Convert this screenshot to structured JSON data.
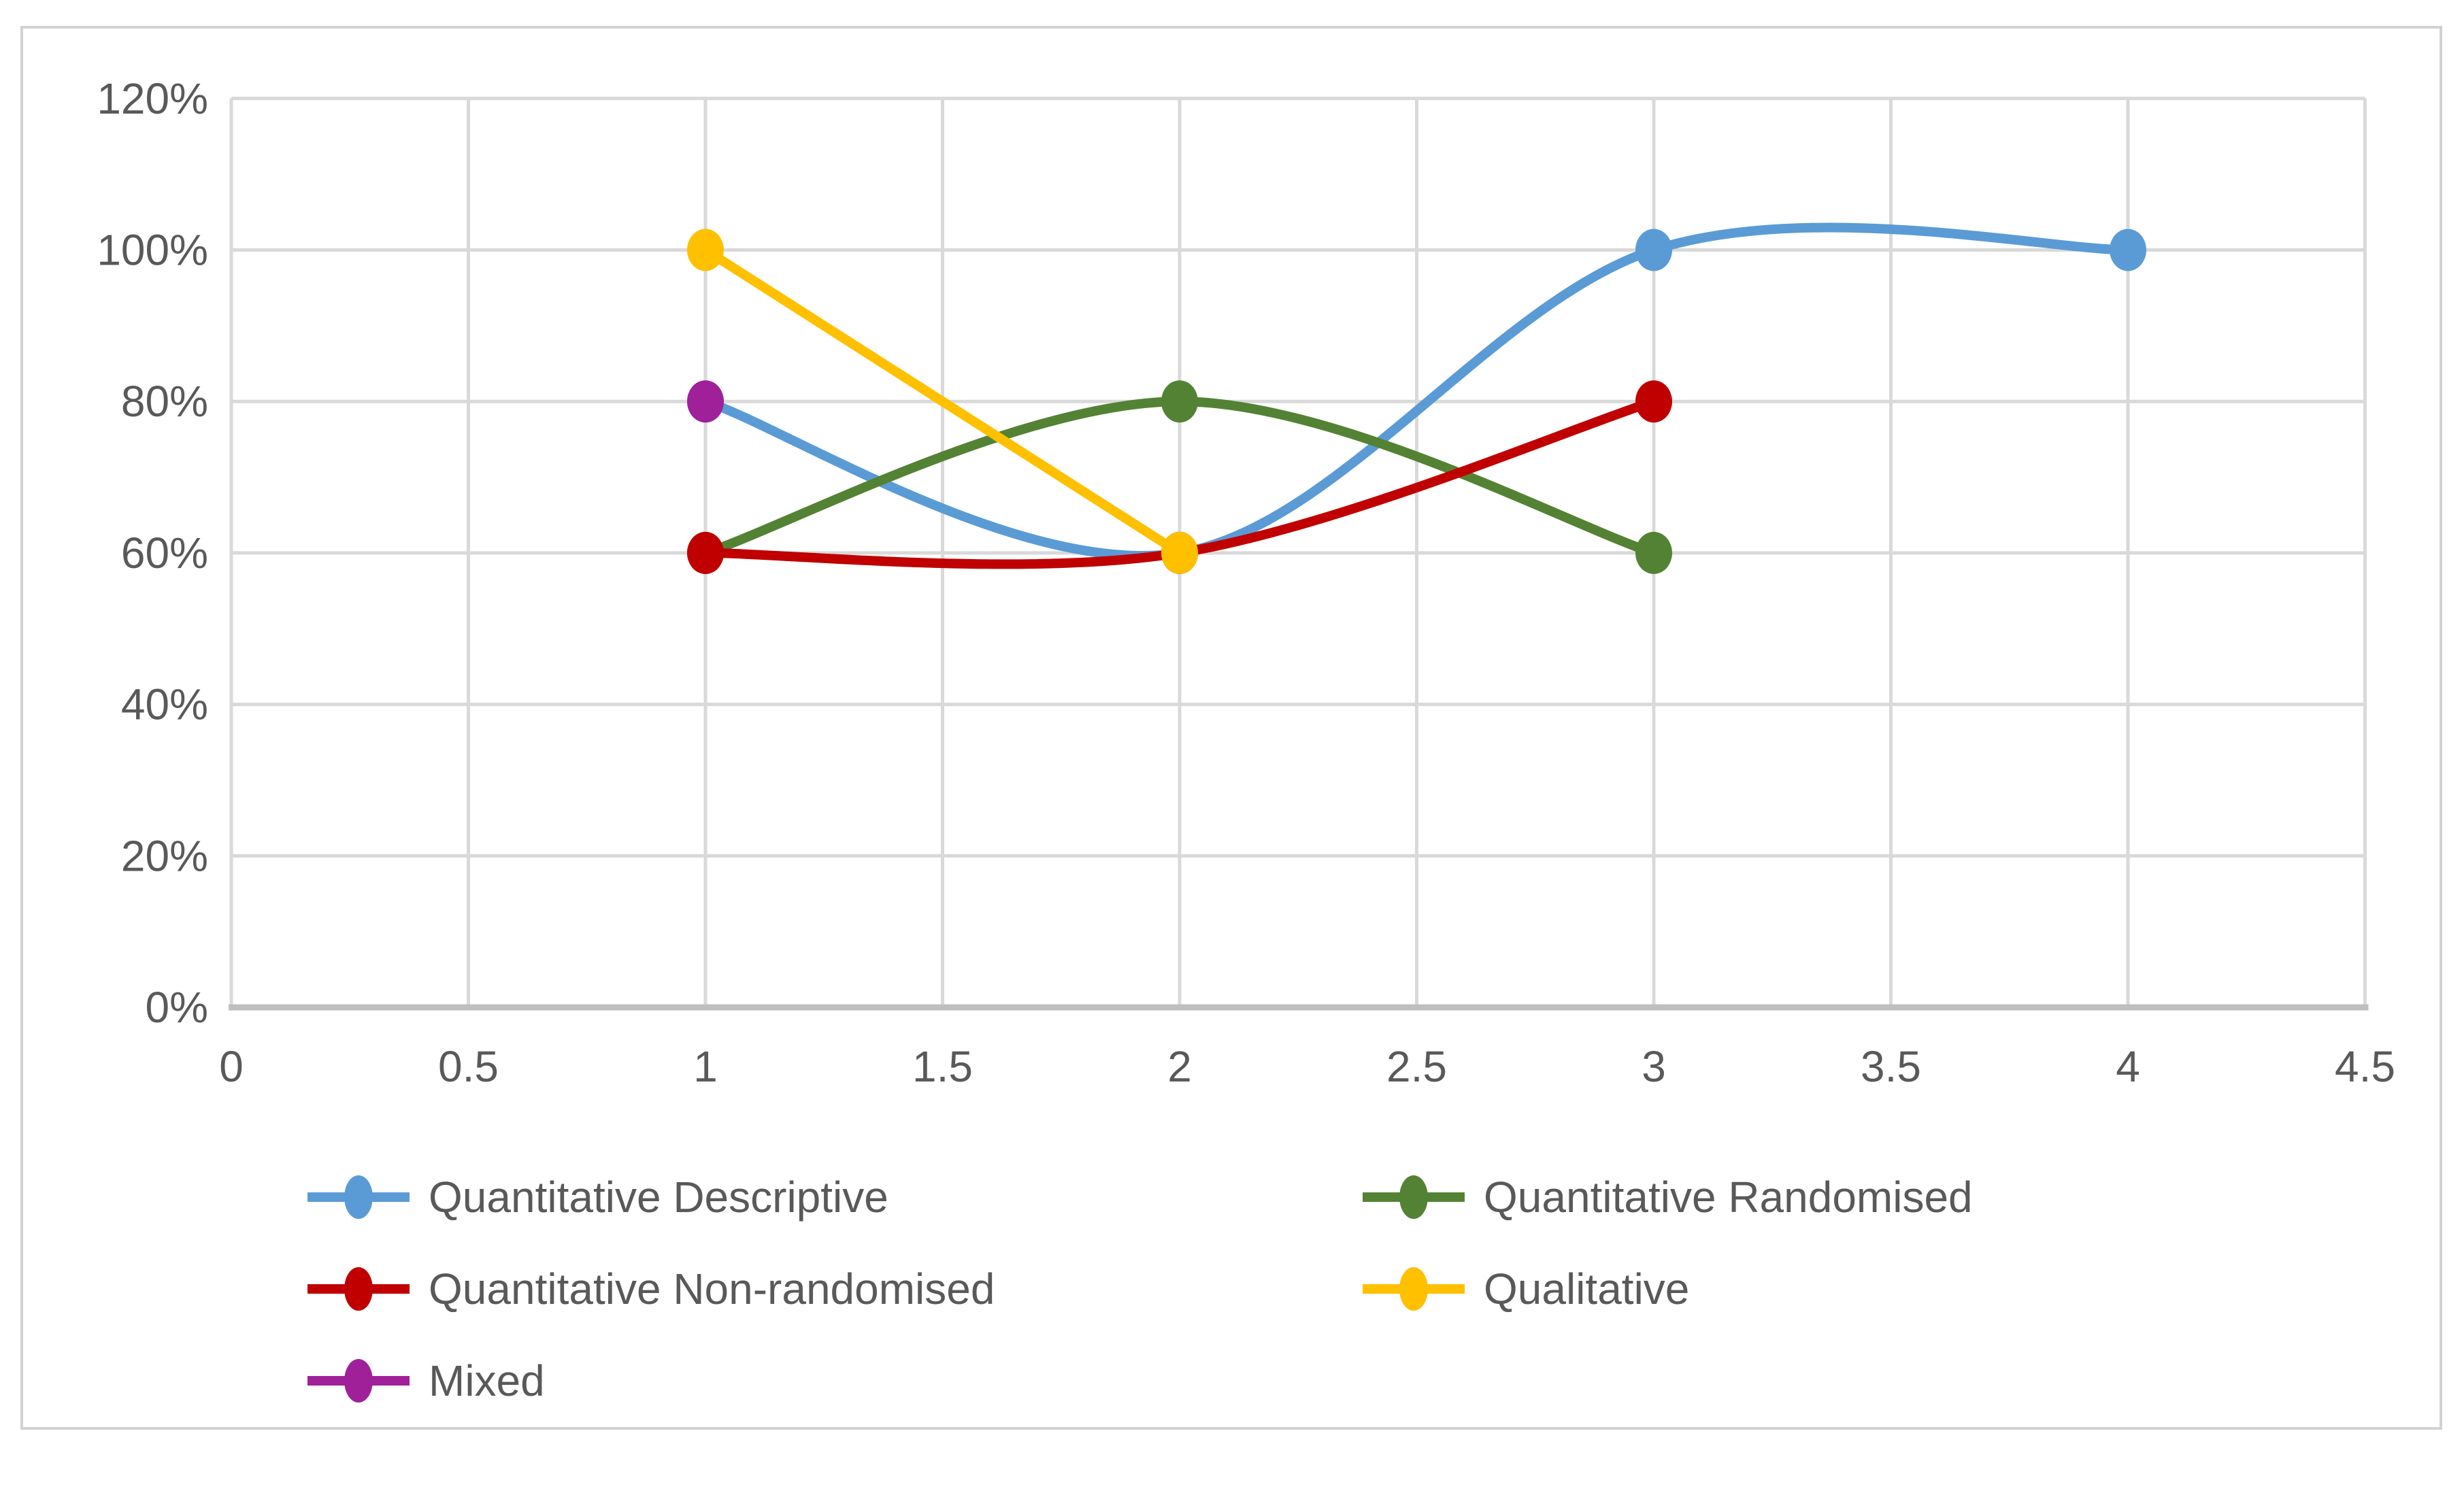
{
  "chart_data": {
    "type": "line",
    "title": "",
    "xlabel": "",
    "ylabel": "",
    "xlim": [
      0,
      4.5
    ],
    "ylim": [
      0,
      120
    ],
    "grid": true,
    "legend_position": "bottom",
    "legend_columns": 2,
    "xtick_values": [
      0,
      0.5,
      1,
      1.5,
      2,
      2.5,
      3,
      3.5,
      4,
      4.5
    ],
    "xtick_labels": [
      "0",
      "0.5",
      "1",
      "1.5",
      "2",
      "2.5",
      "3",
      "3.5",
      "4",
      "4.5"
    ],
    "ytick_values": [
      0,
      20,
      40,
      60,
      80,
      100,
      120
    ],
    "ytick_labels": [
      "0%",
      "20%",
      "40%",
      "60%",
      "80%",
      "100%",
      "120%"
    ],
    "y_unit": "percent",
    "series": [
      {
        "name": "Quantitative Descriptive",
        "color": "#5B9BD5",
        "smooth": true,
        "marker": "circle",
        "points": [
          [
            1,
            80
          ],
          [
            2,
            60
          ],
          [
            3,
            100
          ],
          [
            4,
            100
          ]
        ]
      },
      {
        "name": "Quantitative Randomised",
        "color": "#548235",
        "smooth": true,
        "marker": "circle",
        "points": [
          [
            1,
            60
          ],
          [
            2,
            80
          ],
          [
            3,
            60
          ]
        ]
      },
      {
        "name": "Quantitative Non-randomised",
        "color": "#C00000",
        "smooth": true,
        "marker": "circle",
        "points": [
          [
            1,
            60
          ],
          [
            2,
            60
          ],
          [
            3,
            80
          ]
        ]
      },
      {
        "name": "Qualitative",
        "color": "#FFC000",
        "smooth": true,
        "marker": "circle",
        "points": [
          [
            1,
            100
          ],
          [
            2,
            60
          ]
        ]
      },
      {
        "name": "Mixed",
        "color": "#A0209A",
        "smooth": true,
        "marker": "circle",
        "points": [
          [
            1,
            80
          ]
        ]
      }
    ],
    "colors": {
      "background": "#FFFFFF",
      "plot_border": "#D2D2D2",
      "gridline": "#D9D9D9",
      "axis_line": "#BFBFBF",
      "tick_text": "#595959",
      "legend_text": "#595959"
    }
  }
}
